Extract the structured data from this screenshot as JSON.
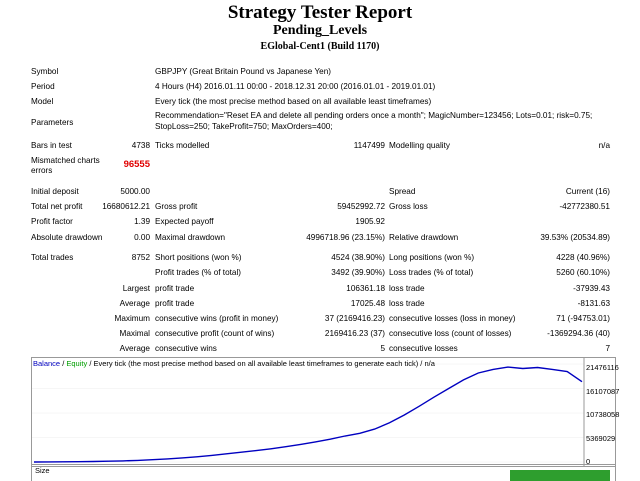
{
  "header": {
    "title": "Strategy Tester Report",
    "ea_name": "Pending_Levels",
    "server": "EGlobal-Cent1 (Build 1170)"
  },
  "info": [
    {
      "label": "Symbol",
      "value": "GBPJPY (Great Britain Pound vs Japanese Yen)"
    },
    {
      "label": "Period",
      "value": "4 Hours (H4) 2016.01.11 00:00 - 2018.12.31 20:00 (2016.01.01 - 2019.01.01)"
    },
    {
      "label": "Model",
      "value": "Every tick (the most precise method based on all available least timeframes)"
    },
    {
      "label": "Parameters",
      "value1": "Recommendation=\"Reset EA and delete all pending orders once a month\"; MagicNumber=123456; Lots=0.01; risk=0.75;",
      "value2": "StopLoss=250; TakeProfit=750; MaxOrders=400;"
    }
  ],
  "bars": {
    "bars_label": "Bars in test",
    "bars_value": "4738",
    "ticks_label": "Ticks modelled",
    "ticks_value": "1147499",
    "quality_label": "Modelling quality",
    "quality_value": "n/a",
    "mismatch_label1": "Mismatched charts",
    "mismatch_label2": "errors",
    "mismatch_value": "96555"
  },
  "stats": {
    "initial_deposit_label": "Initial deposit",
    "initial_deposit": "5000.00",
    "spread_label": "Spread",
    "spread": "Current (16)",
    "net_profit_label": "Total net profit",
    "net_profit": "16680612.21",
    "gross_profit_label": "Gross profit",
    "gross_profit": "59452992.72",
    "gross_loss_label": "Gross loss",
    "gross_loss": "-42772380.51",
    "profit_factor_label": "Profit factor",
    "profit_factor": "1.39",
    "expected_payoff_label": "Expected payoff",
    "expected_payoff": "1905.92",
    "abs_dd_label": "Absolute drawdown",
    "abs_dd": "0.00",
    "max_dd_label": "Maximal drawdown",
    "max_dd": "4996718.96 (23.15%)",
    "rel_dd_label": "Relative drawdown",
    "rel_dd": "39.53% (20534.89)"
  },
  "trades": {
    "total_label": "Total trades",
    "total": "8752",
    "short_label": "Short positions (won %)",
    "short": "4524 (38.90%)",
    "long_label": "Long positions (won %)",
    "long": "4228 (40.96%)",
    "profit_trades_label": "Profit trades (% of total)",
    "profit_trades": "3492 (39.90%)",
    "loss_trades_label": "Loss trades (% of total)",
    "loss_trades": "5260 (60.10%)",
    "largest": "Largest",
    "average": "Average",
    "maximum": "Maximum",
    "maximal": "Maximal",
    "average2": "Average",
    "largest_profit_label": "profit trade",
    "largest_profit": "106361.18",
    "largest_loss_label": "loss trade",
    "largest_loss": "-37939.43",
    "avg_profit_label": "profit trade",
    "avg_profit": "17025.48",
    "avg_loss_label": "loss trade",
    "avg_loss": "-8131.63",
    "max_cons_wins_label": "consecutive wins (profit in money)",
    "max_cons_wins": "37 (2169416.23)",
    "max_cons_losses_label": "consecutive losses (loss in money)",
    "max_cons_losses": "71 (-94753.01)",
    "maximal_cons_profit_label": "consecutive profit (count of wins)",
    "maximal_cons_profit": "2169416.23 (37)",
    "maximal_cons_loss_label": "consecutive loss (count of losses)",
    "maximal_cons_loss": "-1369294.36 (40)",
    "avg_cons_wins_label": "consecutive wins",
    "avg_cons_wins": "5",
    "avg_cons_losses_label": "consecutive losses",
    "avg_cons_losses": "7"
  },
  "chart_header": {
    "balance": "Balance",
    "sep1": " / ",
    "equity": "Equity",
    "rest": " / Every tick (the most precise method based on all available least timeframes to generate each tick) / n/a",
    "balance_color": "#0000c0",
    "equity_color": "#00a000"
  },
  "size_label": "Size",
  "chart_data": {
    "type": "line",
    "title": "",
    "xlabel": "",
    "ylabel": "",
    "ylim": [
      0,
      21476116
    ],
    "y_ticks": [
      "21476116",
      "16107087",
      "10738058",
      "5369029",
      "0"
    ],
    "series": [
      {
        "name": "Balance",
        "color": "#0000c0",
        "values": [
          5000,
          20000,
          40000,
          70000,
          110000,
          170000,
          250000,
          360000,
          500000,
          680000,
          900000,
          1150000,
          1450000,
          1800000,
          2150000,
          2500000,
          2900000,
          3350000,
          3850000,
          4400000,
          5000000,
          5700000,
          6300000,
          7200000,
          8600000,
          10300000,
          12200000,
          14200000,
          16100000,
          18000000,
          19500000,
          20300000,
          20800000,
          20500000,
          20700000,
          20300000,
          19800000,
          17600000
        ]
      }
    ]
  }
}
